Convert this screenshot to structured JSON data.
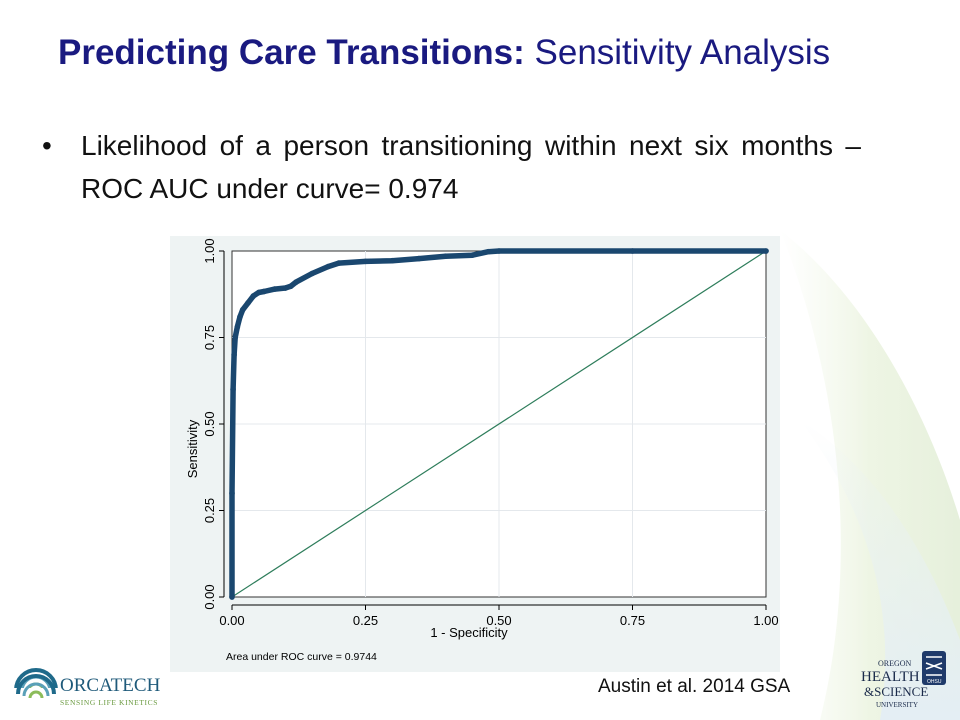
{
  "slide": {
    "title_bold": "Predicting Care Transitions:",
    "title_rest": " Sensitivity Analysis",
    "bullet_symbol": "•",
    "bullet_text": "Likelihood of a person transitioning within next six months – ROC AUC under curve= 0.974",
    "citation": "Austin et al. 2014 GSA"
  },
  "logos": {
    "orcatech_name": "ORCATECH",
    "orcatech_tagline": "SENSING LIFE KINETICS",
    "ohsu_line1": "OREGON",
    "ohsu_line2": "HEALTH",
    "ohsu_line3": "&SCIENCE",
    "ohsu_line4": "UNIVERSITY",
    "ohsu_badge": "OHSU"
  },
  "colors": {
    "title": "#1a1a80",
    "roc_curve": "#1a476f",
    "reference_line": "#2e7d5b",
    "plot_background": "#ffffff",
    "outer_background": "#eef3f3"
  },
  "chart_data": {
    "type": "line",
    "xlabel": "1 - Specificity",
    "ylabel": "Sensitivity",
    "xlim": [
      0,
      1
    ],
    "ylim": [
      0,
      1
    ],
    "xticks": [
      "0.00",
      "0.25",
      "0.50",
      "0.75",
      "1.00"
    ],
    "yticks": [
      "0.00",
      "0.25",
      "0.50",
      "0.75",
      "1.00"
    ],
    "note": "Area under ROC curve = 0.9744",
    "grid": true,
    "series": [
      {
        "values": [
          [
            0,
            0
          ],
          [
            0,
            0.3
          ],
          [
            0.002,
            0.6
          ],
          [
            0.004,
            0.7
          ],
          [
            0.006,
            0.75
          ],
          [
            0.01,
            0.78
          ],
          [
            0.015,
            0.81
          ],
          [
            0.02,
            0.83
          ],
          [
            0.03,
            0.85
          ],
          [
            0.04,
            0.87
          ],
          [
            0.05,
            0.88
          ],
          [
            0.06,
            0.883
          ],
          [
            0.08,
            0.89
          ],
          [
            0.1,
            0.893
          ],
          [
            0.11,
            0.898
          ],
          [
            0.12,
            0.91
          ],
          [
            0.15,
            0.935
          ],
          [
            0.18,
            0.955
          ],
          [
            0.2,
            0.965
          ],
          [
            0.25,
            0.97
          ],
          [
            0.3,
            0.972
          ],
          [
            0.35,
            0.978
          ],
          [
            0.4,
            0.985
          ],
          [
            0.45,
            0.988
          ],
          [
            0.48,
            0.998
          ],
          [
            0.5,
            1.0
          ],
          [
            0.75,
            1.0
          ],
          [
            1.0,
            1.0
          ]
        ]
      },
      {
        "values": [
          [
            0,
            0
          ],
          [
            1,
            1
          ]
        ]
      }
    ]
  }
}
